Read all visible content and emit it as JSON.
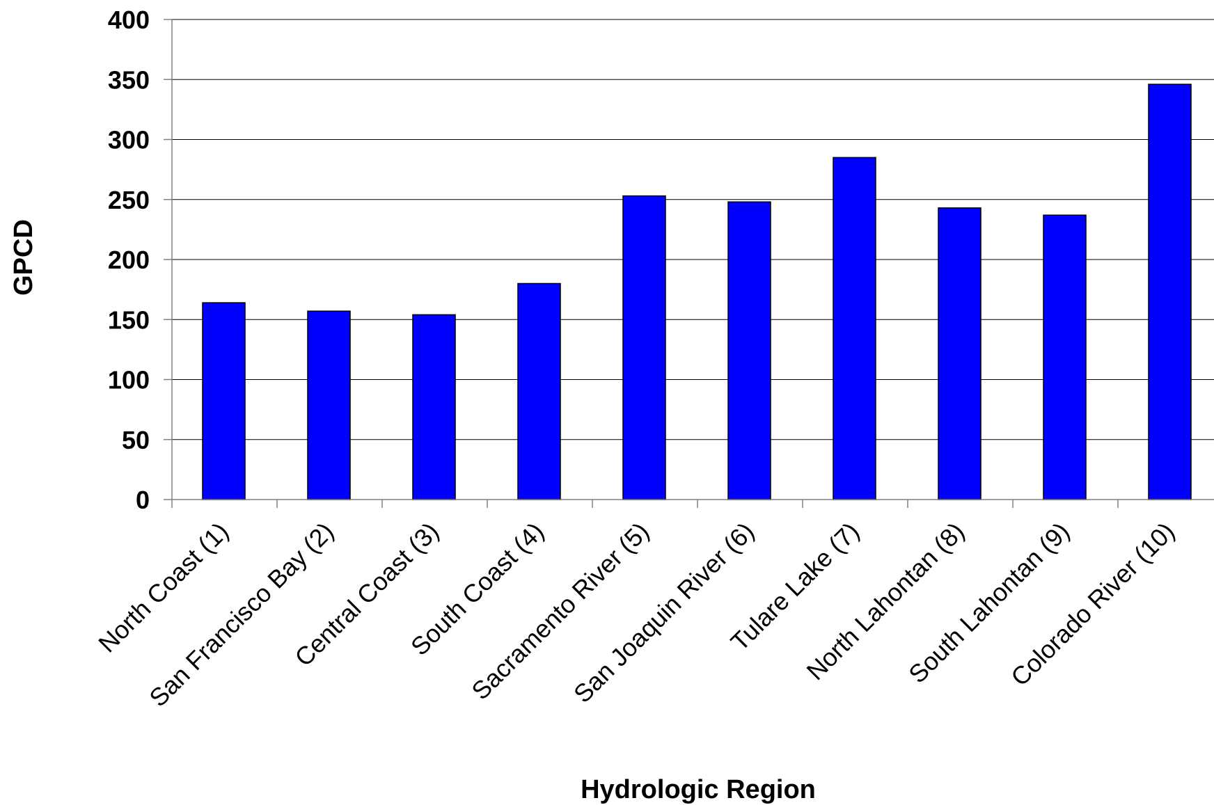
{
  "chart_data": {
    "type": "bar",
    "title": "",
    "xlabel": "Hydrologic Region",
    "ylabel": "GPCD",
    "categories": [
      "North Coast (1)",
      "San Francisco Bay (2)",
      "Central Coast (3)",
      "South Coast (4)",
      "Sacramento River (5)",
      "San Joaquin River (6)",
      "Tulare Lake (7)",
      "North Lahontan (8)",
      "South Lahontan (9)",
      "Colorado River (10)"
    ],
    "values": [
      164,
      157,
      154,
      180,
      253,
      248,
      285,
      243,
      237,
      346
    ],
    "ylim": [
      0,
      400
    ],
    "yticks": [
      0,
      50,
      100,
      150,
      200,
      250,
      300,
      350,
      400
    ],
    "grid": true,
    "legend": "none",
    "bar_color": "#0000FF",
    "bar_edge_color": "#000000",
    "grid_color": "#000000",
    "axis_color": "#808080"
  }
}
